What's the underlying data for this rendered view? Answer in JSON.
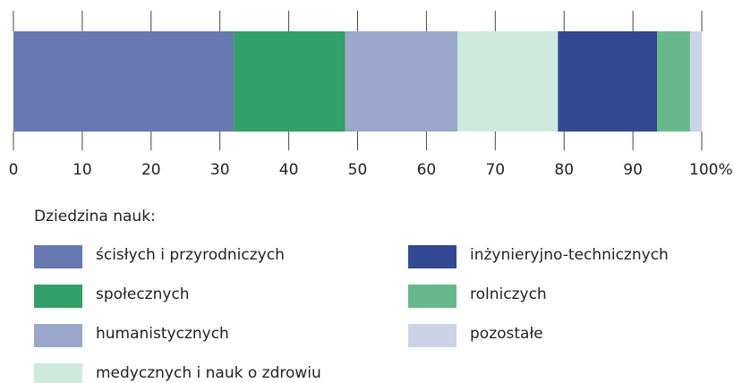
{
  "chart_data": {
    "type": "stacked-bar-horizontal",
    "legend_title": "Dziedzina nauk:",
    "series": [
      {
        "name": "ścisłych i przyrodniczych",
        "color": "#6878b0",
        "values": [
          32.0
        ]
      },
      {
        "name": "społecznych",
        "color": "#33a067",
        "values": [
          16.2
        ]
      },
      {
        "name": "humanistycznych",
        "color": "#9aa6cc",
        "values": [
          16.3
        ]
      },
      {
        "name": "medycznych i nauk o zdrowiu",
        "color": "#cdeadc",
        "values": [
          14.6
        ]
      },
      {
        "name": "inżynieryjno-technicznych",
        "color": "#334892",
        "values": [
          14.4
        ]
      },
      {
        "name": "rolniczych",
        "color": "#66b98a",
        "values": [
          4.8
        ]
      },
      {
        "name": "pozostałe",
        "color": "#cdd3e6",
        "values": [
          1.7
        ]
      }
    ],
    "xlim": [
      0,
      100
    ],
    "xticks": [
      0,
      10,
      20,
      30,
      40,
      50,
      60,
      70,
      80,
      90,
      {
        "value": 100,
        "label": "100%"
      }
    ]
  }
}
